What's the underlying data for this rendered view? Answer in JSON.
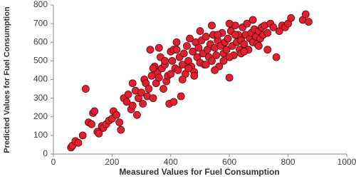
{
  "chart_data": {
    "type": "scatter",
    "x_label": "Measured Values for Fuel Consumption",
    "y_label": "Predicted Values for Fuel Consumption",
    "xlim": [
      0,
      1000
    ],
    "xticks": [
      0,
      200,
      400,
      600,
      800,
      1000
    ],
    "ylim": [
      0,
      800
    ],
    "yticks": [
      0,
      100,
      200,
      300,
      400,
      500,
      600,
      700,
      800
    ],
    "color": "#e0202e",
    "edge_color": "#5a0a10",
    "x": [
      60,
      65,
      75,
      85,
      100,
      110,
      120,
      130,
      135,
      140,
      150,
      155,
      165,
      170,
      180,
      190,
      200,
      205,
      215,
      225,
      230,
      240,
      250,
      255,
      265,
      270,
      280,
      285,
      290,
      300,
      305,
      310,
      315,
      320,
      325,
      330,
      335,
      340,
      345,
      350,
      355,
      360,
      365,
      370,
      375,
      380,
      385,
      390,
      395,
      400,
      405,
      410,
      415,
      420,
      425,
      430,
      435,
      440,
      445,
      450,
      455,
      460,
      465,
      470,
      475,
      480,
      485,
      490,
      495,
      500,
      505,
      510,
      515,
      520,
      525,
      530,
      535,
      540,
      545,
      550,
      555,
      560,
      565,
      570,
      575,
      580,
      585,
      590,
      595,
      600,
      605,
      610,
      615,
      620,
      625,
      630,
      635,
      640,
      645,
      650,
      655,
      660,
      665,
      670,
      675,
      680,
      685,
      690,
      695,
      700,
      705,
      710,
      715,
      720,
      730,
      740,
      750,
      760,
      770,
      780,
      790,
      800,
      810,
      850,
      860,
      870,
      360,
      420,
      480,
      520,
      560,
      600,
      640,
      680,
      700,
      460,
      500,
      540,
      580,
      620,
      380,
      440,
      340,
      400,
      410,
      600,
      550,
      650,
      730,
      270
    ],
    "y": [
      35,
      45,
      70,
      60,
      100,
      350,
      170,
      160,
      220,
      230,
      120,
      110,
      150,
      140,
      160,
      180,
      190,
      230,
      210,
      170,
      130,
      300,
      280,
      320,
      240,
      260,
      340,
      210,
      300,
      330,
      270,
      400,
      380,
      310,
      350,
      560,
      420,
      300,
      470,
      380,
      440,
      410,
      520,
      460,
      350,
      480,
      390,
      420,
      270,
      550,
      500,
      560,
      460,
      600,
      450,
      520,
      310,
      480,
      540,
      430,
      580,
      500,
      620,
      470,
      550,
      440,
      600,
      520,
      570,
      490,
      610,
      540,
      480,
      630,
      560,
      520,
      590,
      500,
      640,
      570,
      530,
      610,
      470,
      580,
      650,
      540,
      600,
      560,
      620,
      410,
      660,
      580,
      530,
      690,
      600,
      640,
      560,
      610,
      680,
      590,
      640,
      700,
      560,
      620,
      650,
      600,
      670,
      630,
      590,
      660,
      620,
      680,
      640,
      690,
      650,
      700,
      680,
      520,
      660,
      690,
      680,
      700,
      730,
      720,
      750,
      710,
      570,
      560,
      420,
      480,
      640,
      520,
      540,
      720,
      580,
      460,
      660,
      690,
      500,
      640,
      500,
      400,
      460,
      430,
      280,
      700,
      450,
      550,
      560,
      380
    ]
  }
}
